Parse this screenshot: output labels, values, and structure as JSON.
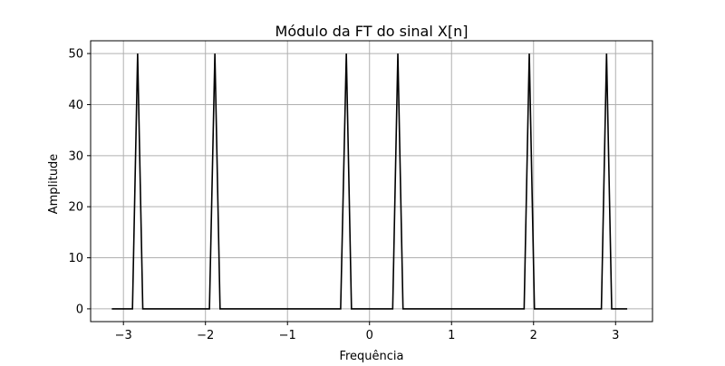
{
  "chart_data": {
    "type": "line",
    "title": "Módulo da FT do sinal X[n]",
    "xlabel": "Frequência",
    "ylabel": "Amplitude",
    "xlim": [
      -3.4,
      3.45
    ],
    "ylim": [
      -2.5,
      52.5
    ],
    "xticks": [
      -3,
      -2,
      -1,
      0,
      1,
      2,
      3
    ],
    "xtick_labels": [
      "−3",
      "−2",
      "−1",
      "0",
      "1",
      "2",
      "3"
    ],
    "yticks": [
      0,
      10,
      20,
      30,
      40,
      50
    ],
    "ytick_labels": [
      "0",
      "10",
      "20",
      "30",
      "40",
      "50"
    ],
    "grid": true,
    "line_color": "#000000",
    "series": [
      {
        "x": [
          -3.1416,
          -2.8898,
          -2.8269,
          -2.764,
          -1.9516,
          -1.885,
          -1.8221,
          -0.3519,
          -0.2827,
          -0.2199,
          0.2827,
          0.3456,
          0.4084,
          1.885,
          1.9478,
          2.0107,
          2.8269,
          2.8898,
          2.9527,
          3.1416
        ],
        "y": [
          0,
          0,
          50,
          0,
          0,
          50,
          0,
          0,
          50,
          0,
          0,
          50,
          0,
          0,
          50,
          0,
          0,
          50,
          0,
          0
        ]
      }
    ]
  }
}
